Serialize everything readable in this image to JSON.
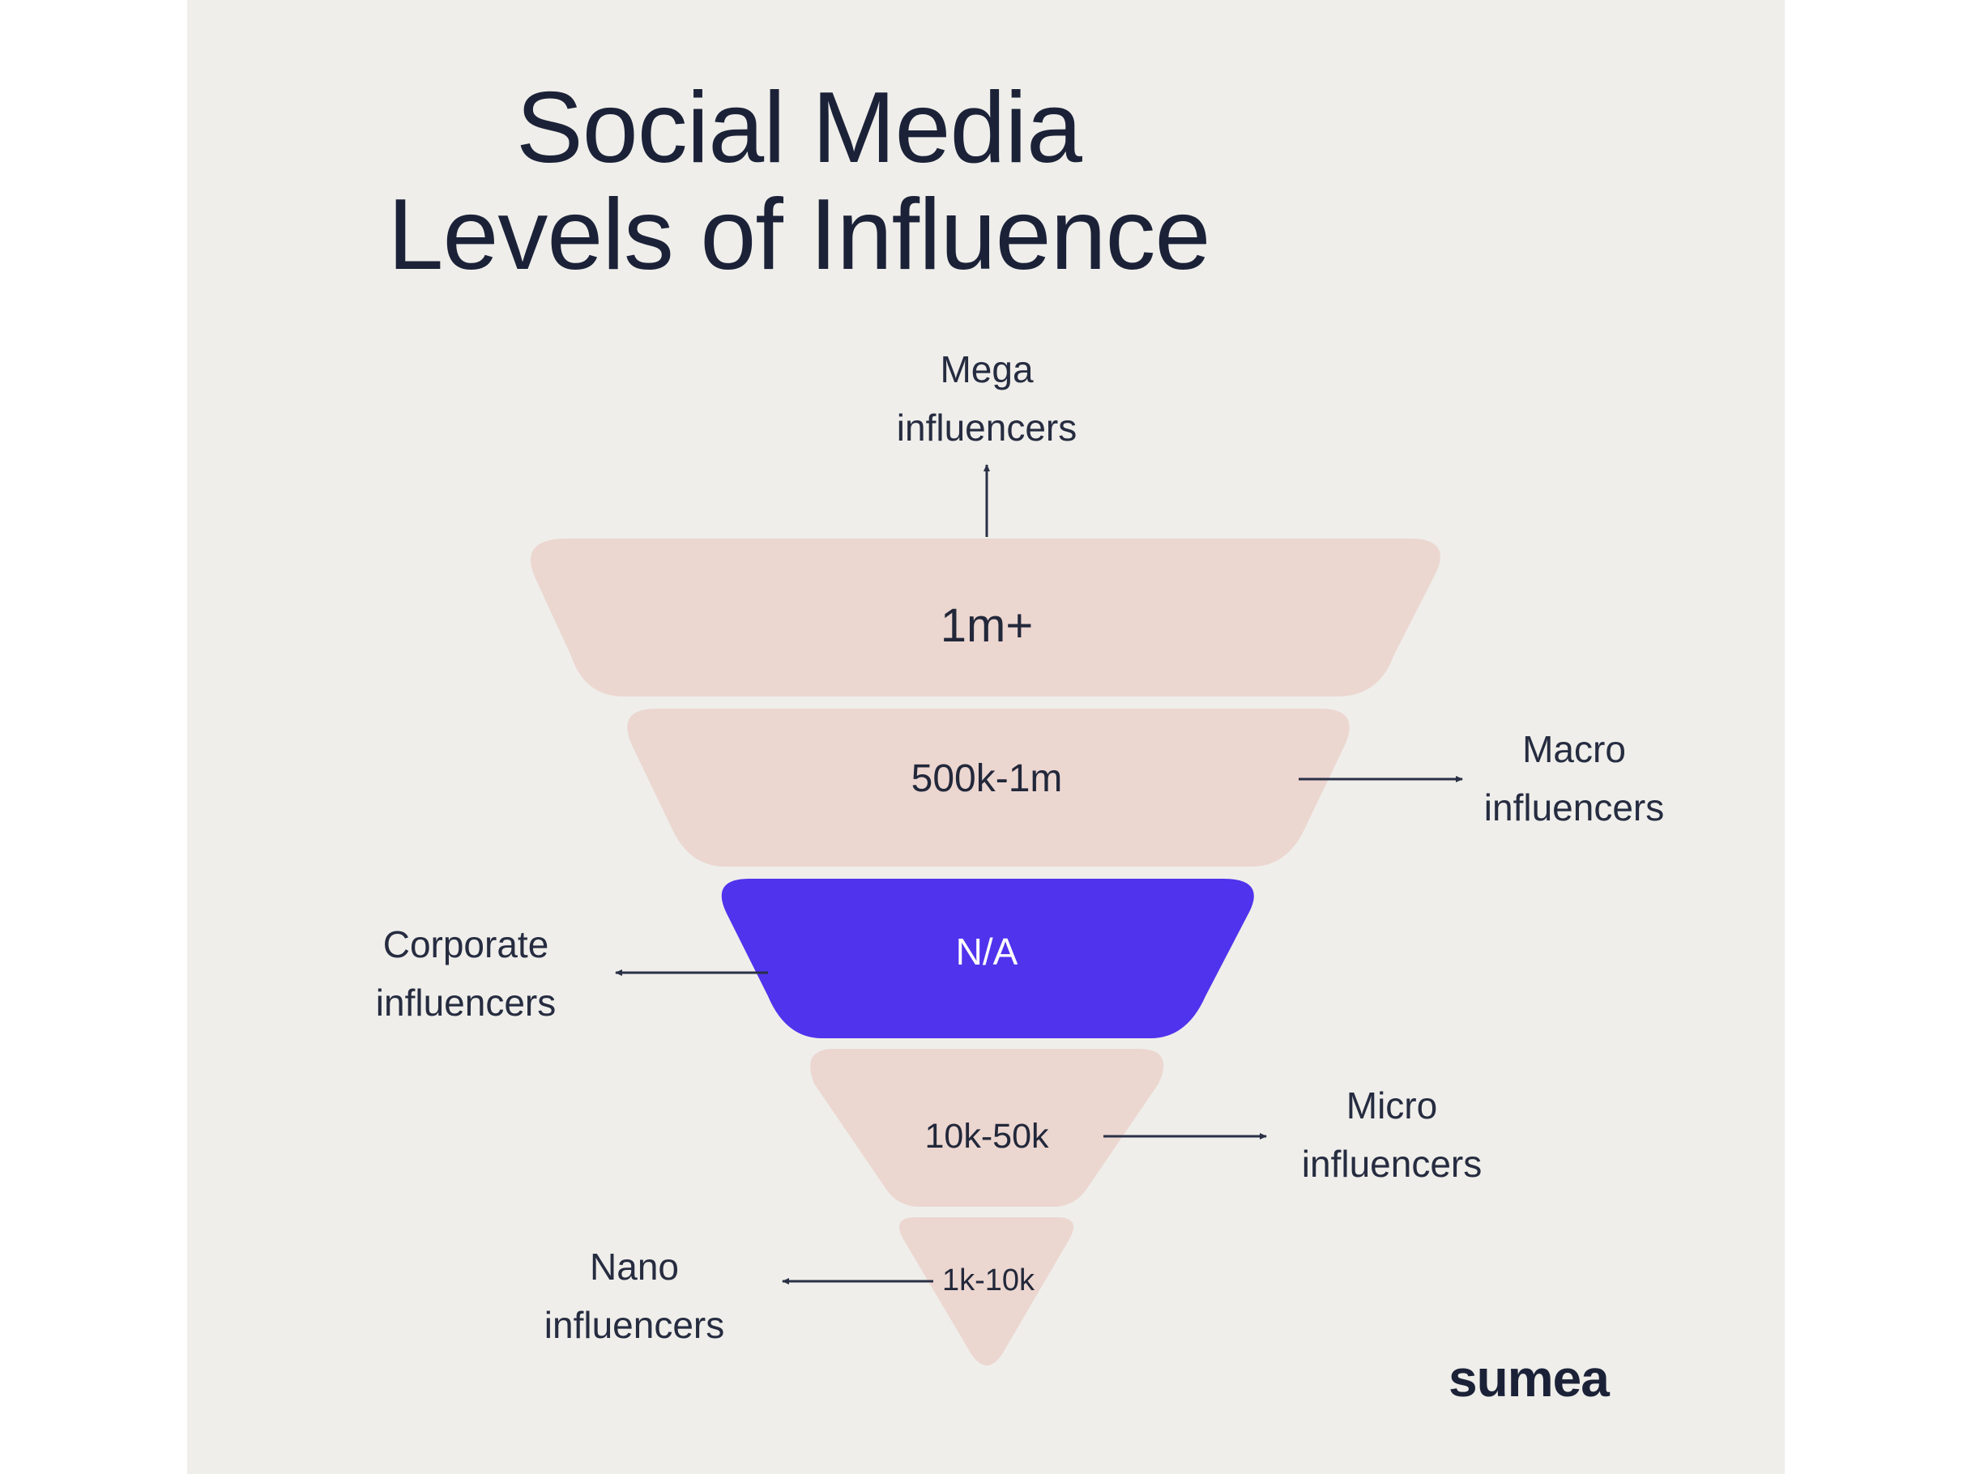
{
  "title": {
    "line1": "Social Media",
    "line2": "Levels of Influence"
  },
  "tiers": [
    {
      "range": "1m+",
      "label_line1": "Mega",
      "label_line2": "influencers",
      "highlight": false
    },
    {
      "range": "500k-1m",
      "label_line1": "Macro",
      "label_line2": "influencers",
      "highlight": false
    },
    {
      "range": "N/A",
      "label_line1": "Corporate",
      "label_line2": "influencers",
      "highlight": true
    },
    {
      "range": "10k-50k",
      "label_line1": "Micro",
      "label_line2": "influencers",
      "highlight": false
    },
    {
      "range": "1k-10k",
      "label_line1": "Nano",
      "label_line2": "influencers",
      "highlight": false
    }
  ],
  "brand": "sumea",
  "colors": {
    "background": "#efeeea",
    "tier": "#ecd6d0",
    "highlight": "#5033ed",
    "text": "#1b2238",
    "arrow": "#2a3046"
  }
}
